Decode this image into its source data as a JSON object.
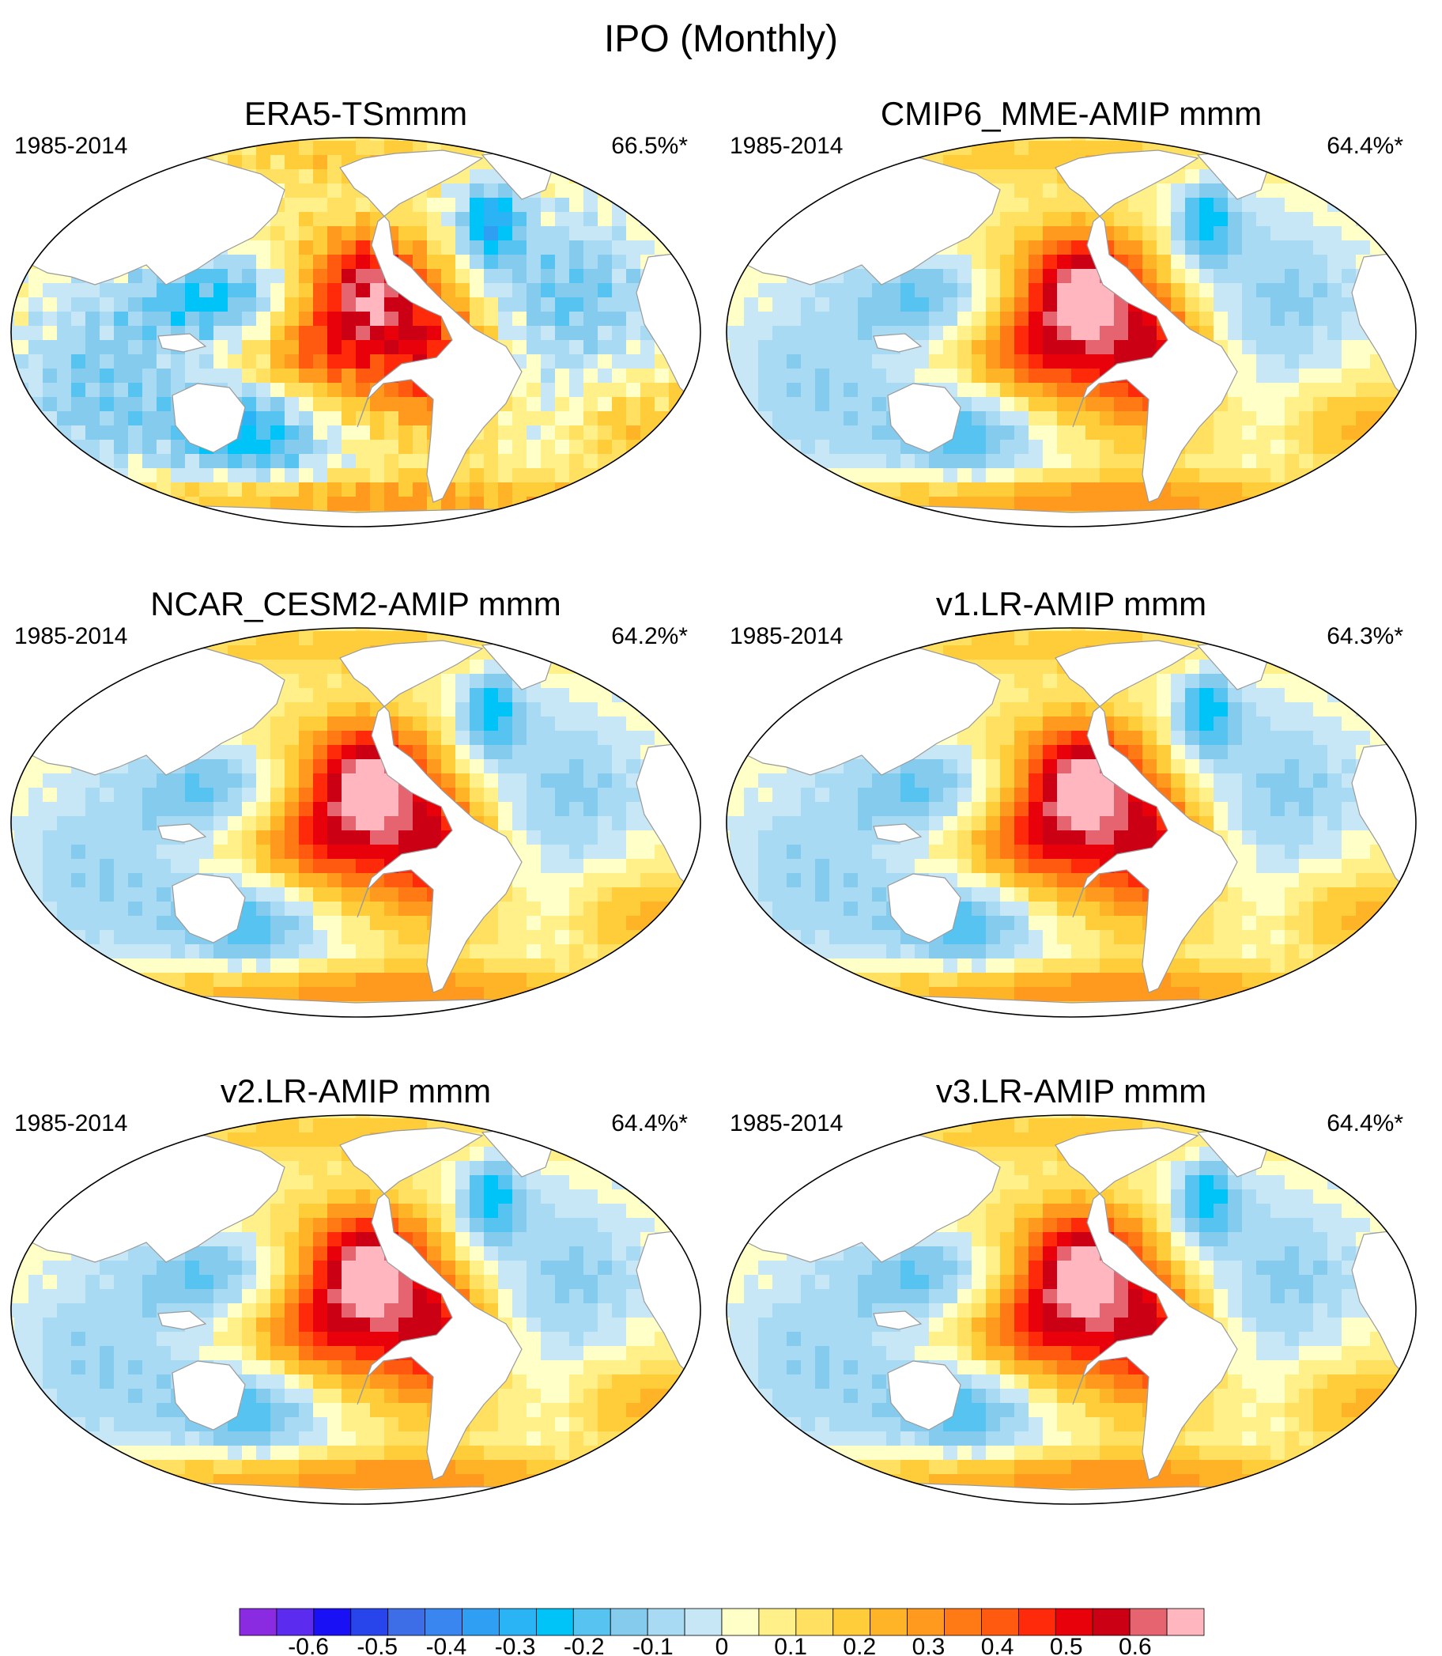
{
  "figure": {
    "title": "IPO (Monthly)"
  },
  "colors": {
    "land": "#ffffff",
    "outline": "#000000",
    "coast": "#9a9a9a"
  },
  "panels": [
    {
      "id": "era5",
      "title": "ERA5-TSmmm",
      "period": "1985-2014",
      "variance": "66.5%*",
      "warm_core": 0.4,
      "cold_core": -0.35,
      "noise": 0.06
    },
    {
      "id": "cmip6",
      "title": "CMIP6_MME-AMIP  mmm",
      "period": "1985-2014",
      "variance": "64.4%*",
      "warm_core": 0.45,
      "cold_core": -0.3,
      "noise": 0.02
    },
    {
      "id": "cesm2",
      "title": "NCAR_CESM2-AMIP  mmm",
      "period": "1985-2014",
      "variance": "64.2%*",
      "warm_core": 0.45,
      "cold_core": -0.3,
      "noise": 0.02
    },
    {
      "id": "v1",
      "title": "v1.LR-AMIP  mmm",
      "period": "1985-2014",
      "variance": "64.3%*",
      "warm_core": 0.45,
      "cold_core": -0.3,
      "noise": 0.02
    },
    {
      "id": "v2",
      "title": "v2.LR-AMIP  mmm",
      "period": "1985-2014",
      "variance": "64.4%*",
      "warm_core": 0.45,
      "cold_core": -0.3,
      "noise": 0.02
    },
    {
      "id": "v3",
      "title": "v3.LR-AMIP  mmm",
      "period": "1985-2014",
      "variance": "64.4%*",
      "warm_core": 0.45,
      "cold_core": -0.3,
      "noise": 0.02
    }
  ],
  "colorbar": {
    "min": -0.7,
    "max": 0.7,
    "step": 0.05,
    "tick_labels": [
      "-0.6",
      "-0.5",
      "-0.4",
      "-0.3",
      "-0.2",
      "-0.1",
      "0",
      "0.1",
      "0.2",
      "0.3",
      "0.4",
      "0.5",
      "0.6"
    ],
    "tick_values": [
      -0.6,
      -0.5,
      -0.4,
      -0.3,
      -0.2,
      -0.1,
      0,
      0.1,
      0.2,
      0.3,
      0.4,
      0.5,
      0.6
    ],
    "colors": [
      "#8a2be2",
      "#5b2cf0",
      "#1a10f5",
      "#2845ec",
      "#3d6ee8",
      "#3a86f0",
      "#2f9ff4",
      "#2ab4f6",
      "#00c3f8",
      "#57c3f0",
      "#85cbee",
      "#a9daf3",
      "#c8e7f6",
      "#ffffc8",
      "#fff08a",
      "#ffe060",
      "#ffcc3a",
      "#ffb428",
      "#ff9a1e",
      "#ff7a14",
      "#ff5a10",
      "#ff2a0a",
      "#e8000a",
      "#cc0014",
      "#e66470",
      "#ffb6be"
    ]
  }
}
